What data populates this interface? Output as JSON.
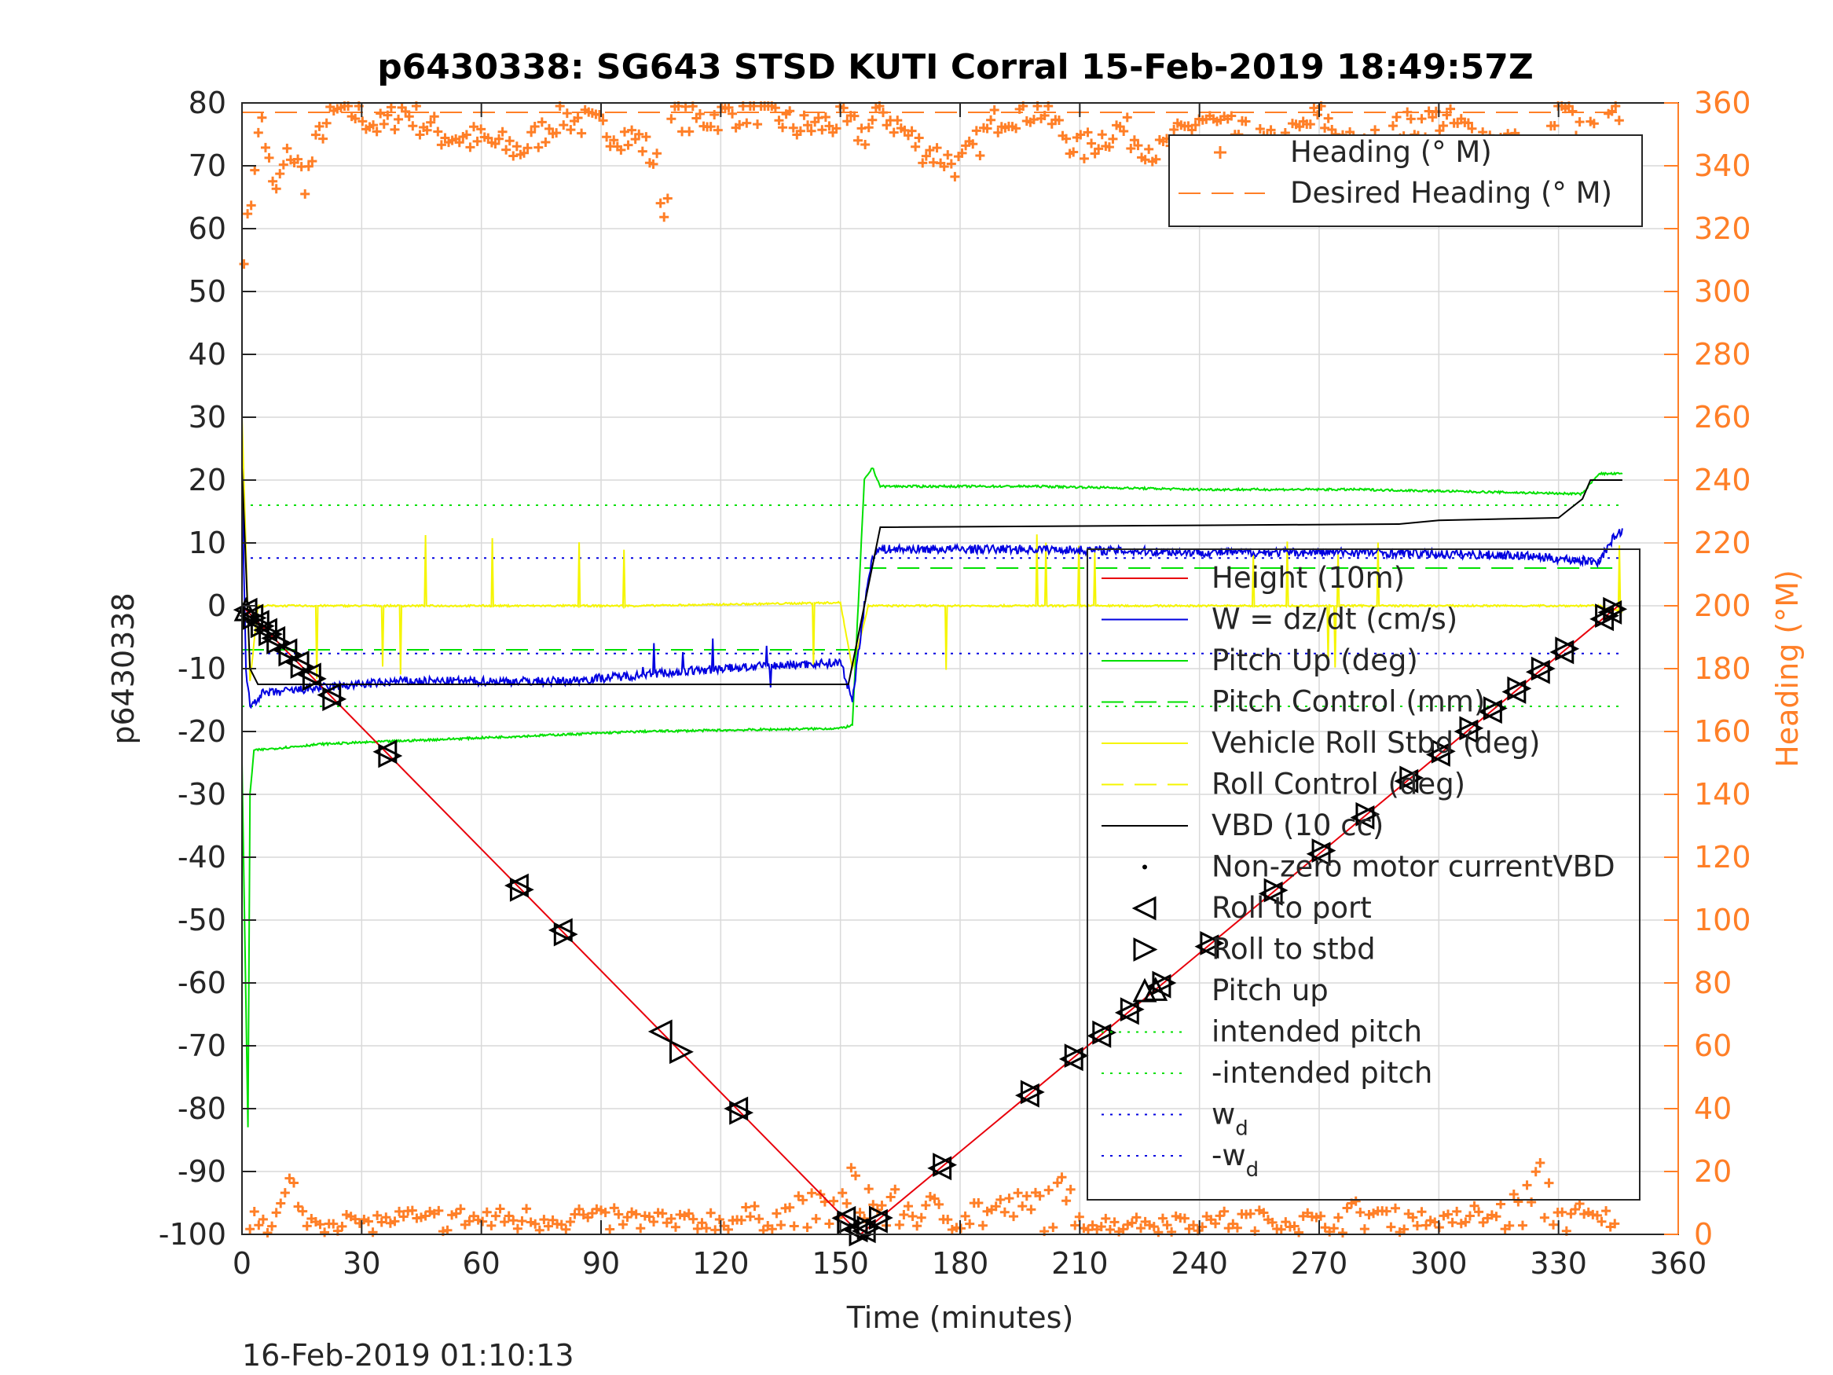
{
  "chart_data": {
    "type": "line",
    "title": "p6430338: SG643 STSD KUTI Corral 15-Feb-2019 18:49:57Z",
    "xlabel": "Time (minutes)",
    "ylabel": "p6430338",
    "y2label": "Heading (°M)",
    "footer": "16-Feb-2019 01:10:13",
    "grid": true,
    "xlim": [
      0,
      360
    ],
    "ylim": [
      -100,
      80
    ],
    "y2lim": [
      0,
      360
    ],
    "xticks": [
      0,
      30,
      60,
      90,
      120,
      150,
      180,
      210,
      240,
      270,
      300,
      330,
      360
    ],
    "yticks": [
      -100,
      -90,
      -80,
      -70,
      -60,
      -50,
      -40,
      -30,
      -20,
      -10,
      0,
      10,
      20,
      30,
      40,
      50,
      60,
      70,
      80
    ],
    "y2ticks": [
      0,
      20,
      40,
      60,
      80,
      100,
      120,
      140,
      160,
      180,
      200,
      220,
      240,
      260,
      280,
      300,
      320,
      340,
      360
    ],
    "colors": {
      "height": "#e8000b",
      "w": "#0000e0",
      "pitch": "#00e000",
      "roll": "#f5f500",
      "vbd": "#000000",
      "heading": "#ff7f27",
      "grid": "#d9d9d9"
    },
    "legend_heading": {
      "position": "top-right",
      "entries": [
        "Heading (° M)",
        "Desired Heading (° M)"
      ]
    },
    "legend_main": {
      "position": "right",
      "entries": [
        {
          "label": "Height (10m)",
          "style": "red-line"
        },
        {
          "label": "W = dz/dt (cm/s)",
          "style": "blue-line"
        },
        {
          "label": "Pitch Up (deg)",
          "style": "green-line"
        },
        {
          "label": "Pitch Control (mm)",
          "style": "green-dash"
        },
        {
          "label": "Vehicle Roll Stbd (deg)",
          "style": "yellow-line"
        },
        {
          "label": "Roll Control (deg)",
          "style": "yellow-dash"
        },
        {
          "label": "VBD (10 cc)",
          "style": "black-line"
        },
        {
          "label": "Non-zero motor currentVBD",
          "style": "black-dot"
        },
        {
          "label": "Roll to port",
          "style": "tri-left"
        },
        {
          "label": "Roll to stbd",
          "style": "tri-right"
        },
        {
          "label": "Pitch up",
          "style": "tri-up"
        },
        {
          "label": "intended pitch",
          "style": "green-dot"
        },
        {
          "label": "-intended pitch",
          "style": "green-dot"
        },
        {
          "label": "w",
          "sub": "d",
          "style": "blue-dot"
        },
        {
          "label": "-w",
          "sub": "d",
          "style": "blue-dot"
        }
      ]
    },
    "reference_lines": {
      "intended_pitch": 16,
      "minus_intended_pitch": -16,
      "w_d": 7.6,
      "minus_w_d": -7.6,
      "desired_heading": 357,
      "pitch_control_dive": -7,
      "pitch_control_climb": 6
    },
    "series": [
      {
        "name": "Height (10m)",
        "x": [
          0,
          155,
          345
        ],
        "y": [
          0,
          -100,
          0
        ]
      },
      {
        "name": "W = dz/dt (cm/s)",
        "x": [
          0,
          1,
          2,
          5,
          20,
          40,
          80,
          100,
          120,
          150,
          153,
          156,
          158,
          160,
          200,
          240,
          280,
          320,
          340,
          344,
          346
        ],
        "y": [
          20,
          -10,
          -16,
          -14,
          -13,
          -12,
          -12,
          -11,
          -10,
          -9,
          -15,
          0,
          8,
          9,
          9,
          8.5,
          8.5,
          8,
          7,
          11,
          12
        ]
      },
      {
        "name": "Pitch Up (deg)",
        "x": [
          0,
          1.5,
          2,
          3,
          20,
          60,
          100,
          150,
          153,
          156,
          158,
          160,
          200,
          240,
          280,
          320,
          336,
          340,
          346
        ],
        "y": [
          -25,
          -83,
          -30,
          -23,
          -22,
          -21,
          -20,
          -19.5,
          -19,
          20,
          22,
          19,
          19,
          18.5,
          18.5,
          18,
          17.8,
          21,
          21
        ]
      },
      {
        "name": "Vehicle Roll Stbd (deg)",
        "x": [
          0,
          2,
          4,
          10,
          50,
          100,
          150,
          153,
          157,
          160,
          200,
          250,
          300,
          340,
          346
        ],
        "y": [
          30,
          -12,
          0,
          0,
          0,
          0,
          0.5,
          -10,
          0,
          0,
          0,
          0,
          0,
          0,
          -1
        ]
      },
      {
        "name": "VBD (10 cc)",
        "x": [
          0,
          2,
          4,
          20,
          152,
          156,
          160,
          240,
          290,
          300,
          330,
          332,
          336,
          338,
          346
        ],
        "y": [
          22,
          -10,
          -12.5,
          -12.5,
          -12.5,
          0,
          12.5,
          12.8,
          13,
          13.6,
          14,
          15,
          17,
          20,
          20
        ]
      }
    ],
    "markers_roll_port_x": [
      1,
      2.5,
      4,
      6,
      8,
      11,
      14,
      17,
      22,
      36,
      69,
      80,
      105,
      124,
      151,
      154,
      156,
      159,
      175,
      197,
      208,
      215,
      222,
      230,
      242,
      258,
      270,
      281,
      292,
      300,
      307,
      313,
      319,
      325,
      331,
      341,
      343
    ],
    "markers_roll_stbd_x": [
      3,
      5,
      7,
      9,
      12,
      15,
      18,
      23,
      37,
      70,
      81,
      110,
      125,
      152,
      155,
      157,
      160,
      176,
      198,
      209,
      216,
      223,
      231,
      243,
      259,
      271,
      282,
      293,
      301,
      308,
      314,
      320,
      326,
      332,
      342,
      344
    ],
    "markers_pitch_up_x": [
      1,
      229
    ],
    "heading_top_x": [
      0,
      2,
      3,
      5,
      8,
      12,
      16,
      20,
      25,
      30,
      35,
      40,
      50,
      60,
      70,
      80,
      90,
      100,
      104,
      106,
      108,
      112,
      120,
      130,
      140,
      150,
      156,
      160,
      170,
      180,
      190,
      200,
      210,
      220,
      230,
      240,
      250,
      260,
      270,
      280,
      290,
      300,
      310,
      320,
      326,
      330,
      335,
      340,
      346
    ],
    "heading_top_y": [
      310,
      325,
      340,
      355,
      330,
      345,
      335,
      352,
      358,
      356,
      352,
      358,
      350,
      348,
      345,
      356,
      352,
      348,
      340,
      322,
      358,
      354,
      356,
      358,
      352,
      354,
      350,
      358,
      346,
      340,
      356,
      358,
      345,
      352,
      344,
      355,
      350,
      346,
      356,
      344,
      352,
      355,
      350,
      346,
      340,
      358,
      352,
      348,
      358
    ],
    "heading_bottom_x": [
      2,
      4,
      6,
      10,
      12,
      14,
      18,
      25,
      30,
      38,
      70,
      80,
      110,
      125,
      152,
      154,
      156,
      158,
      176,
      195,
      200,
      205,
      208,
      215,
      230,
      258,
      270,
      282,
      292,
      305,
      320,
      325,
      330,
      340
    ],
    "heading_bottom_y": [
      8,
      15,
      5,
      12,
      25,
      10,
      5,
      8,
      4,
      6,
      7,
      8,
      5,
      6,
      15,
      28,
      25,
      14,
      10,
      12,
      15,
      18,
      12,
      3,
      5,
      6,
      5,
      10,
      7,
      6,
      12,
      25,
      10,
      6
    ]
  }
}
